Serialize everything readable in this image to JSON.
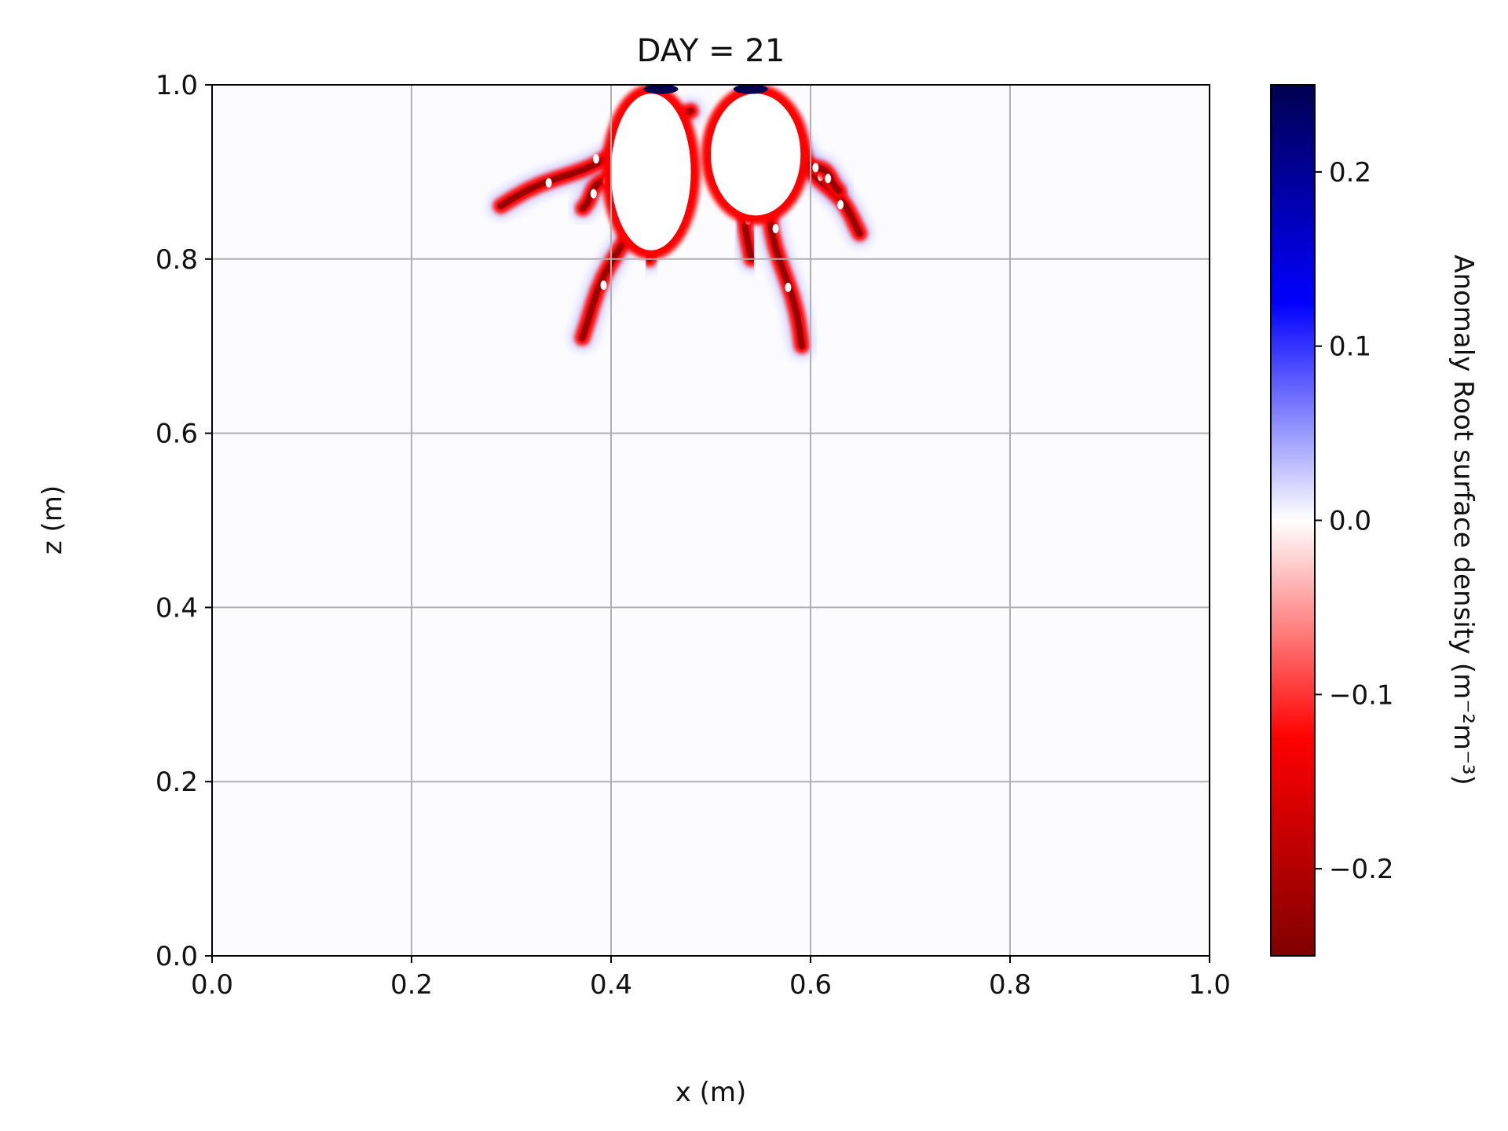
{
  "chart_data": {
    "type": "heatmap",
    "title": "DAY = 21",
    "xlabel": "x (m)",
    "ylabel": "z (m)",
    "xlim": [
      0.0,
      1.0
    ],
    "ylim": [
      0.0,
      1.0
    ],
    "x_ticks": [
      "0.0",
      "0.2",
      "0.4",
      "0.6",
      "0.8",
      "1.0"
    ],
    "y_ticks": [
      "0.0",
      "0.2",
      "0.4",
      "0.6",
      "0.8",
      "1.0"
    ],
    "grid": true,
    "colorbar": {
      "label": "Anomaly Root surface density (m⁻²m⁻³)",
      "range": [
        -0.25,
        0.25
      ],
      "ticks": [
        "−0.2",
        "−0.1",
        "0.0",
        "0.1",
        "0.2"
      ],
      "tick_values": [
        -0.2,
        -0.1,
        0.0,
        0.1,
        0.2
      ],
      "colormap": "seismic_r",
      "colors": [
        "#800000",
        "#ff0000",
        "#ffffff",
        "#0000ff",
        "#000050"
      ]
    },
    "features": {
      "note_values": "root anomaly field drawn as a 2D image over the domain; values saturate below -0.25 near the central root mass",
      "root_branches": [
        {
          "from": [
            0.48,
            0.97
          ],
          "to": [
            0.29,
            0.86
          ]
        },
        {
          "from": [
            0.46,
            0.95
          ],
          "to": [
            0.37,
            0.71
          ]
        },
        {
          "from": [
            0.42,
            0.92
          ],
          "to": [
            0.37,
            0.86
          ]
        },
        {
          "from": [
            0.54,
            0.97
          ],
          "to": [
            0.59,
            0.7
          ]
        },
        {
          "from": [
            0.57,
            0.96
          ],
          "to": [
            0.65,
            0.83
          ]
        },
        {
          "from": [
            0.58,
            0.93
          ],
          "to": [
            0.63,
            0.88
          ]
        },
        {
          "from": [
            0.44,
            0.99
          ],
          "to": [
            0.44,
            0.8
          ]
        },
        {
          "from": [
            0.53,
            0.98
          ],
          "to": [
            0.54,
            0.8
          ]
        }
      ],
      "saturated_core": [
        {
          "cx": 0.44,
          "cz": 0.9,
          "rx": 0.04,
          "rz": 0.09
        },
        {
          "cx": 0.545,
          "cz": 0.92,
          "rx": 0.045,
          "rz": 0.07
        }
      ],
      "positive_spots": [
        {
          "x": 0.45,
          "z": 0.995
        },
        {
          "x": 0.54,
          "z": 0.995
        }
      ]
    }
  }
}
